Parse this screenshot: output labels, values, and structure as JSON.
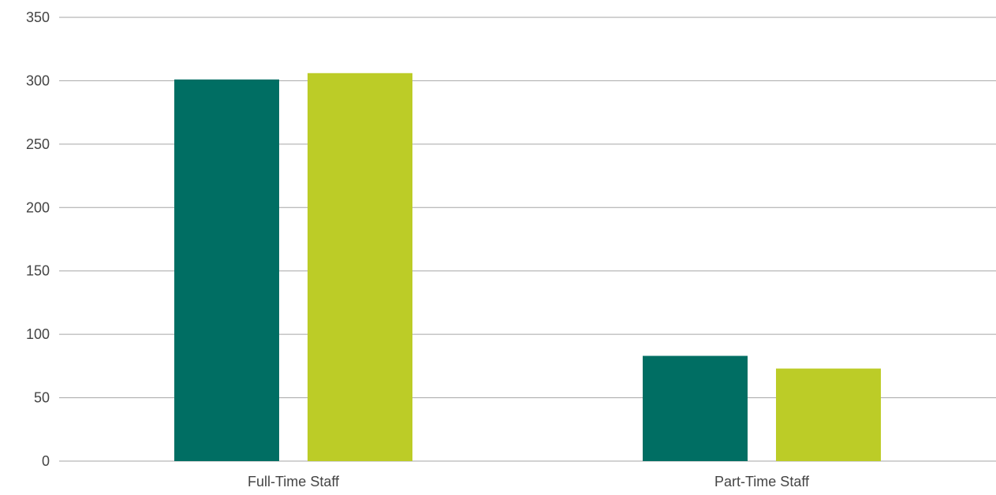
{
  "chart_data": {
    "type": "bar",
    "categories": [
      "Full-Time Staff",
      "Part-Time Staff"
    ],
    "series": [
      {
        "values": [
          301,
          83
        ],
        "color": "#006e63"
      },
      {
        "values": [
          306,
          73
        ],
        "color": "#bccc27"
      }
    ],
    "ylim": [
      0,
      350
    ],
    "yticks": [
      0,
      50,
      100,
      150,
      200,
      250,
      300,
      350
    ],
    "grid": true,
    "legend": "none",
    "gridline_color": "#a6a6a6"
  }
}
